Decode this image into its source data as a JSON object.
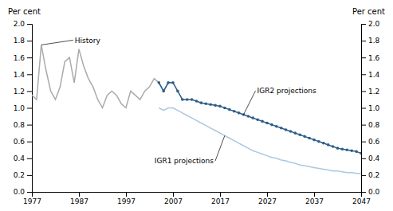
{
  "chart_data": {
    "type": "line",
    "ylabel": "Per cent",
    "y2label": "Per cent",
    "x": [
      1977,
      1978,
      1979,
      1980,
      1981,
      1982,
      1983,
      1984,
      1985,
      1986,
      1987,
      1988,
      1989,
      1990,
      1991,
      1992,
      1993,
      1994,
      1995,
      1996,
      1997,
      1998,
      1999,
      2000,
      2001,
      2002,
      2003,
      2004,
      2005,
      2006,
      2007,
      2008,
      2009,
      2010,
      2011,
      2012,
      2013,
      2014,
      2015,
      2016,
      2017,
      2018,
      2019,
      2020,
      2021,
      2022,
      2023,
      2024,
      2025,
      2026,
      2027,
      2028,
      2029,
      2030,
      2031,
      2032,
      2033,
      2034,
      2035,
      2036,
      2037,
      2038,
      2039,
      2040,
      2041,
      2042,
      2043,
      2044,
      2045,
      2046,
      2047
    ],
    "series": [
      {
        "name": "History",
        "color": "#aaaaaa",
        "values": [
          1.15,
          1.1,
          1.75,
          1.45,
          1.2,
          1.1,
          1.25,
          1.55,
          1.6,
          1.3,
          1.7,
          1.5,
          1.35,
          1.25,
          1.1,
          1.0,
          1.15,
          1.2,
          1.15,
          1.05,
          1.0,
          1.2,
          1.15,
          1.1,
          1.2,
          1.25,
          1.35,
          1.3,
          1.2,
          1.3,
          1.3,
          null,
          null,
          null,
          null,
          null,
          null,
          null,
          null,
          null,
          null,
          null,
          null,
          null,
          null,
          null,
          null,
          null,
          null,
          null,
          null,
          null,
          null,
          null,
          null,
          null,
          null,
          null,
          null,
          null,
          null,
          null,
          null,
          null,
          null,
          null,
          null,
          null,
          null,
          null,
          null
        ]
      },
      {
        "name": "IGR2 projections",
        "color": "#2e5f8a",
        "marker": "circle",
        "values": [
          null,
          null,
          null,
          null,
          null,
          null,
          null,
          null,
          null,
          null,
          null,
          null,
          null,
          null,
          null,
          null,
          null,
          null,
          null,
          null,
          null,
          null,
          null,
          null,
          null,
          null,
          null,
          1.3,
          1.2,
          1.3,
          1.3,
          1.2,
          1.1,
          1.1,
          1.1,
          1.08,
          1.06,
          1.05,
          1.04,
          1.03,
          1.02,
          1.0,
          0.98,
          0.96,
          0.94,
          0.92,
          0.9,
          0.88,
          0.86,
          0.84,
          0.82,
          0.8,
          0.78,
          0.76,
          0.74,
          0.72,
          0.7,
          0.68,
          0.66,
          0.64,
          0.62,
          0.6,
          0.58,
          0.56,
          0.54,
          0.52,
          0.51,
          0.5,
          0.49,
          0.48,
          0.46
        ]
      },
      {
        "name": "IGR1 projections",
        "color": "#aac8e0",
        "values": [
          null,
          null,
          null,
          null,
          null,
          null,
          null,
          null,
          null,
          null,
          null,
          null,
          null,
          null,
          null,
          null,
          null,
          null,
          null,
          null,
          null,
          null,
          null,
          null,
          null,
          null,
          null,
          1.0,
          0.97,
          1.0,
          1.0,
          0.97,
          0.94,
          0.91,
          0.88,
          0.85,
          0.82,
          0.79,
          0.76,
          0.73,
          0.7,
          0.67,
          0.64,
          0.61,
          0.58,
          0.55,
          0.52,
          0.49,
          0.47,
          0.45,
          0.43,
          0.41,
          0.4,
          0.38,
          0.37,
          0.35,
          0.34,
          0.32,
          0.31,
          0.3,
          0.29,
          0.28,
          0.27,
          0.26,
          0.25,
          0.25,
          0.24,
          0.23,
          0.23,
          0.22,
          0.22
        ]
      }
    ],
    "xlim": [
      1977,
      2047
    ],
    "xticks": [
      1977,
      1987,
      1997,
      2007,
      2017,
      2027,
      2037,
      2047
    ],
    "ylim": [
      0.0,
      2.0
    ],
    "yticks": [
      {
        "value": 0.0,
        "label": "0.0"
      },
      0.2,
      0.4,
      0.6,
      0.8,
      {
        "value": 1.0,
        "label": "1.0"
      },
      1.2,
      1.4,
      1.6,
      1.8,
      {
        "value": 2.0,
        "label": "2.0"
      }
    ],
    "y2lim": [
      0.0,
      2.0
    ],
    "y2ticks": [
      {
        "value": 0.0,
        "label": "0.0"
      },
      0.2,
      0.4,
      0.6,
      0.8,
      {
        "value": 1.0,
        "label": "1.0"
      },
      1.2,
      1.4,
      1.6,
      1.8,
      {
        "value": 2.0,
        "label": "2.0"
      }
    ],
    "grid": false
  }
}
